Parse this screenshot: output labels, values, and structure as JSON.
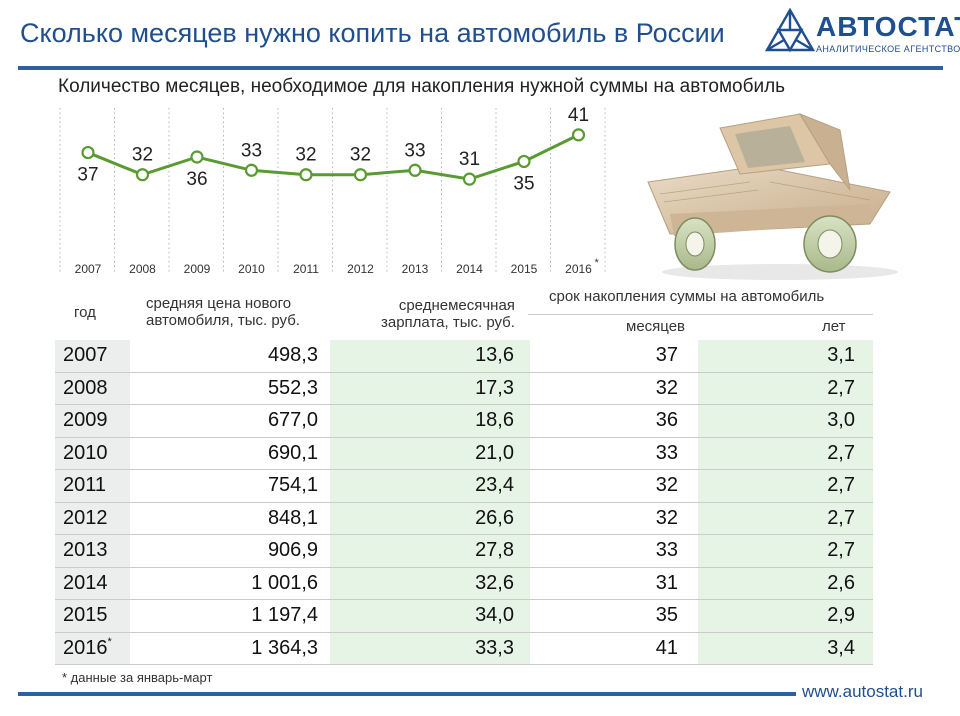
{
  "header": {
    "title": "Сколько месяцев нужно копить на автомобиль в России",
    "logo_name": "АВТОСТАТ",
    "logo_tagline": "аналитическое агентство",
    "brand_color": "#1f4f8f"
  },
  "chart_data": {
    "type": "line",
    "title": "Количество месяцев, необходимое для накопления нужной суммы на автомобиль",
    "x": [
      "2007",
      "2008",
      "2009",
      "2010",
      "2011",
      "2012",
      "2013",
      "2014",
      "2015",
      "2016"
    ],
    "x_star_index": 9,
    "x_star_mark": "*",
    "series": [
      {
        "values": [
          37,
          32,
          36,
          33,
          32,
          32,
          33,
          31,
          35,
          41
        ],
        "color": "#5a9a32"
      }
    ],
    "ylim": [
      29,
      43
    ],
    "grid": "vertical-dotted",
    "legend": "none"
  },
  "table": {
    "headers": {
      "year": "год",
      "price": "средняя цена нового автомобиля, тыс. руб.",
      "price_line1": "средняя цена нового",
      "price_line2": "автомобиля, тыс. руб.",
      "wage_line1": "среднемесячная",
      "wage_line2": "зарплата, тыс. руб.",
      "period": "срок накопления суммы на автомобиль",
      "months": "месяцев",
      "years": "лет"
    },
    "rows": [
      {
        "year": "2007",
        "star": "",
        "price": "498,3",
        "wage": "13,6",
        "months": "37",
        "years": "3,1"
      },
      {
        "year": "2008",
        "star": "",
        "price": "552,3",
        "wage": "17,3",
        "months": "32",
        "years": "2,7"
      },
      {
        "year": "2009",
        "star": "",
        "price": "677,0",
        "wage": "18,6",
        "months": "36",
        "years": "3,0"
      },
      {
        "year": "2010",
        "star": "",
        "price": "690,1",
        "wage": "21,0",
        "months": "33",
        "years": "2,7"
      },
      {
        "year": "2011",
        "star": "",
        "price": "754,1",
        "wage": "23,4",
        "months": "32",
        "years": "2,7"
      },
      {
        "year": "2012",
        "star": "",
        "price": "848,1",
        "wage": "26,6",
        "months": "32",
        "years": "2,7"
      },
      {
        "year": "2013",
        "star": "",
        "price": "906,9",
        "wage": "27,8",
        "months": "33",
        "years": "2,7"
      },
      {
        "year": "2014",
        "star": "",
        "price": "1 001,6",
        "wage": "32,6",
        "months": "31",
        "years": "2,6"
      },
      {
        "year": "2015",
        "star": "",
        "price": "1 197,4",
        "wage": "34,0",
        "months": "35",
        "years": "2,9"
      },
      {
        "year": "2016",
        "star": "*",
        "price": "1 364,3",
        "wage": "33,3",
        "months": "41",
        "years": "3,4"
      }
    ]
  },
  "footer": {
    "footnote": "* данные за январь-март",
    "site": "www.autostat.ru"
  },
  "illustration": {
    "icon": "banknote-car-icon"
  }
}
